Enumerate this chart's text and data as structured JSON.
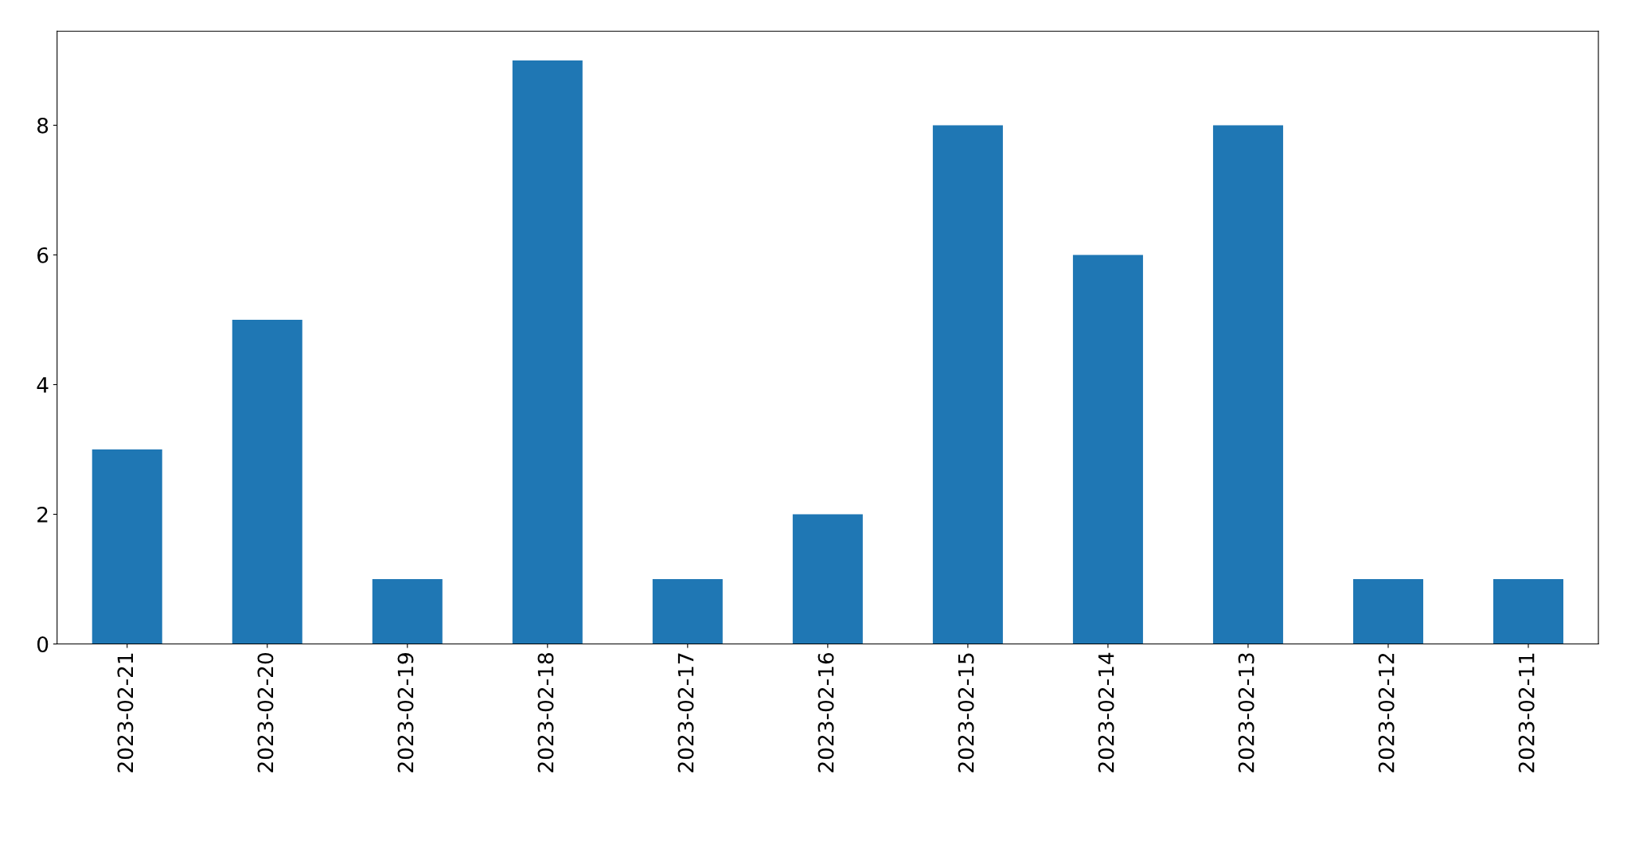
{
  "chart_data": {
    "type": "bar",
    "categories": [
      "2023-02-21",
      "2023-02-20",
      "2023-02-19",
      "2023-02-18",
      "2023-02-17",
      "2023-02-16",
      "2023-02-15",
      "2023-02-14",
      "2023-02-13",
      "2023-02-12",
      "2023-02-11"
    ],
    "values": [
      3,
      5,
      1,
      9,
      1,
      2,
      8,
      6,
      8,
      1,
      1
    ],
    "color": "#1f77b4",
    "ylim": [
      0,
      9.45
    ],
    "yticks": [
      0,
      2,
      4,
      6,
      8
    ],
    "grid": false,
    "legend": false
  }
}
